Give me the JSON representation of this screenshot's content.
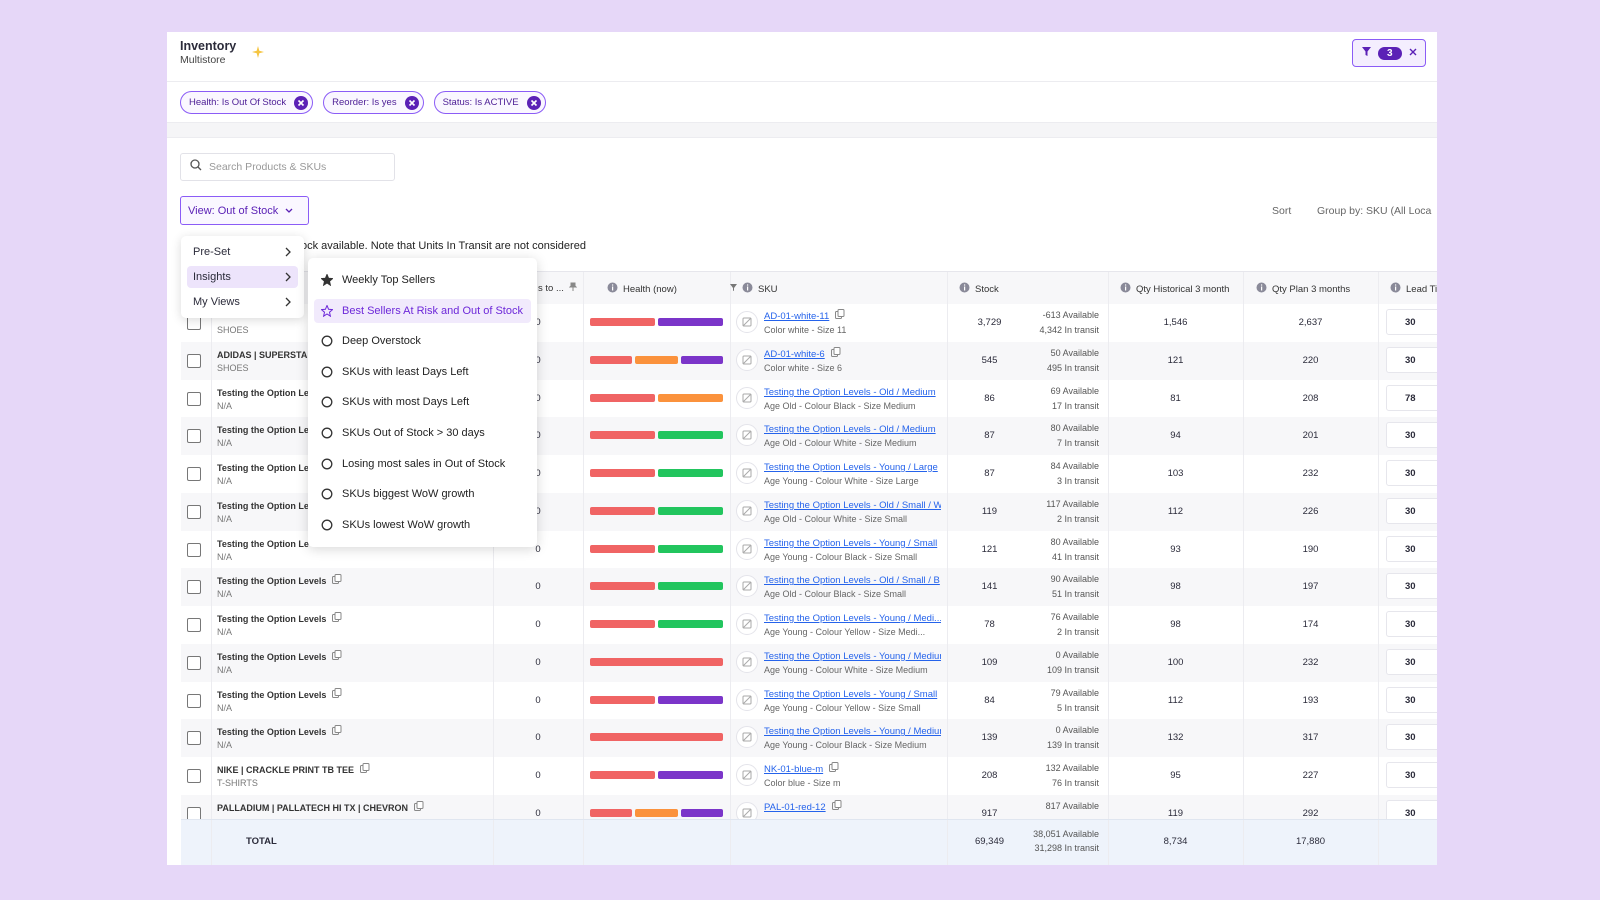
{
  "header": {
    "title": "Inventory",
    "subtitle": "Multistore",
    "filter_count": "3"
  },
  "filters": [
    "Health: Is Out Of Stock",
    "Reorder: Is yes",
    "Status: Is ACTIVE"
  ],
  "toolbar": {
    "search_placeholder": "Search Products & SKUs",
    "view": "View: Out of Stock",
    "sort": "Sort",
    "group_by": "Group by: SKU (All Loca"
  },
  "notice": "ock available. Note that Units In Transit are not considered",
  "menu": {
    "items": [
      "Pre-Set",
      "Insights",
      "My Views"
    ],
    "active": 1
  },
  "submenu": {
    "items": [
      "Weekly Top Sellers",
      "Best Sellers At Risk and Out of Stock",
      "Deep Overstock",
      "SKUs with least Days Left",
      "SKUs with most Days Left",
      "SKUs Out of Stock > 30 days",
      "Losing most sales in Out of Stock",
      "SKUs biggest WoW growth",
      "SKUs lowest WoW growth"
    ],
    "active": 1
  },
  "table": {
    "columns": [
      "s to ...",
      "Health (now)",
      "SKU",
      "Stock",
      "Qty Historical 3 month",
      "Qty Plan 3 months",
      "Lead Ti"
    ],
    "rows": [
      {
        "category": "SHOES",
        "days": "0",
        "health": [
          "#f06464",
          "#7b35c9"
        ],
        "sku": "AD-01-white-11",
        "variant": "Color white - Size 11",
        "stock": "3,729",
        "available": "-613 Available",
        "in_transit": "4,342 In transit",
        "qty_hist": "1,546",
        "qty_plan": "2,637",
        "lead": "30"
      },
      {
        "product": "ADIDAS | SUPERSTAI",
        "category": "SHOES",
        "days": "0",
        "health": [
          "#f06464",
          "#fb923c",
          "#7b35c9"
        ],
        "sku": "AD-01-white-6",
        "variant": "Color white - Size 6",
        "stock": "545",
        "available": "50 Available",
        "in_transit": "495 In transit",
        "qty_hist": "121",
        "qty_plan": "220",
        "lead": "30"
      },
      {
        "product": "Testing the Option Le",
        "category": "N/A",
        "days": "0",
        "health": [
          "#f06464",
          "#fb923c"
        ],
        "sku": "Testing the Option Levels - Old / Medium",
        "variant": "Age Old - Colour Black - Size Medium",
        "stock": "86",
        "available": "69 Available",
        "in_transit": "17 In transit",
        "qty_hist": "81",
        "qty_plan": "208",
        "lead": "78"
      },
      {
        "product": "Testing the Option Le",
        "category": "N/A",
        "days": "0",
        "health": [
          "#f06464",
          "#22c55e"
        ],
        "sku": "Testing the Option Levels - Old / Medium",
        "variant": "Age Old - Colour White - Size Medium",
        "stock": "87",
        "available": "80 Available",
        "in_transit": "7 In transit",
        "qty_hist": "94",
        "qty_plan": "201",
        "lead": "30"
      },
      {
        "product": "Testing the Option Le",
        "category": "N/A",
        "days": "0",
        "health": [
          "#f06464",
          "#22c55e"
        ],
        "sku": "Testing the Option Levels - Young / Large",
        "variant": "Age Young - Colour White - Size Large",
        "stock": "87",
        "available": "84 Available",
        "in_transit": "3 In transit",
        "qty_hist": "103",
        "qty_plan": "232",
        "lead": "30"
      },
      {
        "product": "Testing the Option Le",
        "category": "N/A",
        "days": "0",
        "health": [
          "#f06464",
          "#22c55e"
        ],
        "sku": "Testing the Option Levels - Old / Small / W",
        "variant": "Age Old - Colour White - Size Small",
        "stock": "119",
        "available": "117 Available",
        "in_transit": "2 In transit",
        "qty_hist": "112",
        "qty_plan": "226",
        "lead": "30"
      },
      {
        "product": "Testing the Option Le",
        "category": "N/A",
        "days": "0",
        "health": [
          "#f06464",
          "#22c55e"
        ],
        "sku": "Testing the Option Levels - Young / Small",
        "variant": "Age Young - Colour Black - Size Small",
        "stock": "121",
        "available": "80 Available",
        "in_transit": "41 In transit",
        "qty_hist": "93",
        "qty_plan": "190",
        "lead": "30"
      },
      {
        "product": "Testing the Option Levels",
        "category": "N/A",
        "days": "0",
        "health": [
          "#f06464",
          "#22c55e"
        ],
        "sku": "Testing the Option Levels - Old / Small / B",
        "variant": "Age Old - Colour Black - Size Small",
        "stock": "141",
        "available": "90 Available",
        "in_transit": "51 In transit",
        "qty_hist": "98",
        "qty_plan": "197",
        "lead": "30"
      },
      {
        "product": "Testing the Option Levels",
        "category": "N/A",
        "days": "0",
        "health": [
          "#f06464",
          "#22c55e"
        ],
        "sku": "Testing the Option Levels - Young / Medi...",
        "variant": "Age Young - Colour Yellow - Size Medi...",
        "stock": "78",
        "available": "76 Available",
        "in_transit": "2 In transit",
        "qty_hist": "98",
        "qty_plan": "174",
        "lead": "30"
      },
      {
        "product": "Testing the Option Levels",
        "category": "N/A",
        "days": "0",
        "health": [
          "#f06464"
        ],
        "sku": "Testing the Option Levels - Young / Medium",
        "variant": "Age Young - Colour White - Size Medium",
        "stock": "109",
        "available": "0 Available",
        "in_transit": "109 In transit",
        "qty_hist": "100",
        "qty_plan": "232",
        "lead": "30"
      },
      {
        "product": "Testing the Option Levels",
        "category": "N/A",
        "days": "0",
        "health": [
          "#f06464",
          "#7b35c9"
        ],
        "sku": "Testing the Option Levels - Young / Small",
        "variant": "Age Young - Colour Yellow - Size Small",
        "stock": "84",
        "available": "79 Available",
        "in_transit": "5 In transit",
        "qty_hist": "112",
        "qty_plan": "193",
        "lead": "30"
      },
      {
        "product": "Testing the Option Levels",
        "category": "N/A",
        "days": "0",
        "health": [
          "#f06464"
        ],
        "sku": "Testing the Option Levels - Young / Medium",
        "variant": "Age Young - Colour Black - Size Medium",
        "stock": "139",
        "available": "0 Available",
        "in_transit": "139 In transit",
        "qty_hist": "132",
        "qty_plan": "317",
        "lead": "30"
      },
      {
        "product": "NIKE | CRACKLE PRINT TB TEE",
        "category": "T-SHIRTS",
        "days": "0",
        "health": [
          "#f06464",
          "#7b35c9"
        ],
        "sku": "NK-01-blue-m",
        "variant": "Color blue - Size m",
        "stock": "208",
        "available": "132 Available",
        "in_transit": "76 In transit",
        "qty_hist": "95",
        "qty_plan": "227",
        "lead": "30"
      },
      {
        "product": "PALLADIUM | PALLATECH HI TX | CHEVRON",
        "days": "0",
        "health": [
          "#f06464",
          "#fb923c",
          "#7b35c9"
        ],
        "sku": "PAL-01-red-12",
        "stock": "917",
        "available": "817 Available",
        "qty_hist": "119",
        "qty_plan": "292",
        "lead": "30"
      }
    ],
    "total": {
      "label": "TOTAL",
      "stock": "69,349",
      "available": "38,051 Available",
      "in_transit": "31,298 In transit",
      "qty_hist": "8,734",
      "qty_plan": "17,880"
    }
  }
}
